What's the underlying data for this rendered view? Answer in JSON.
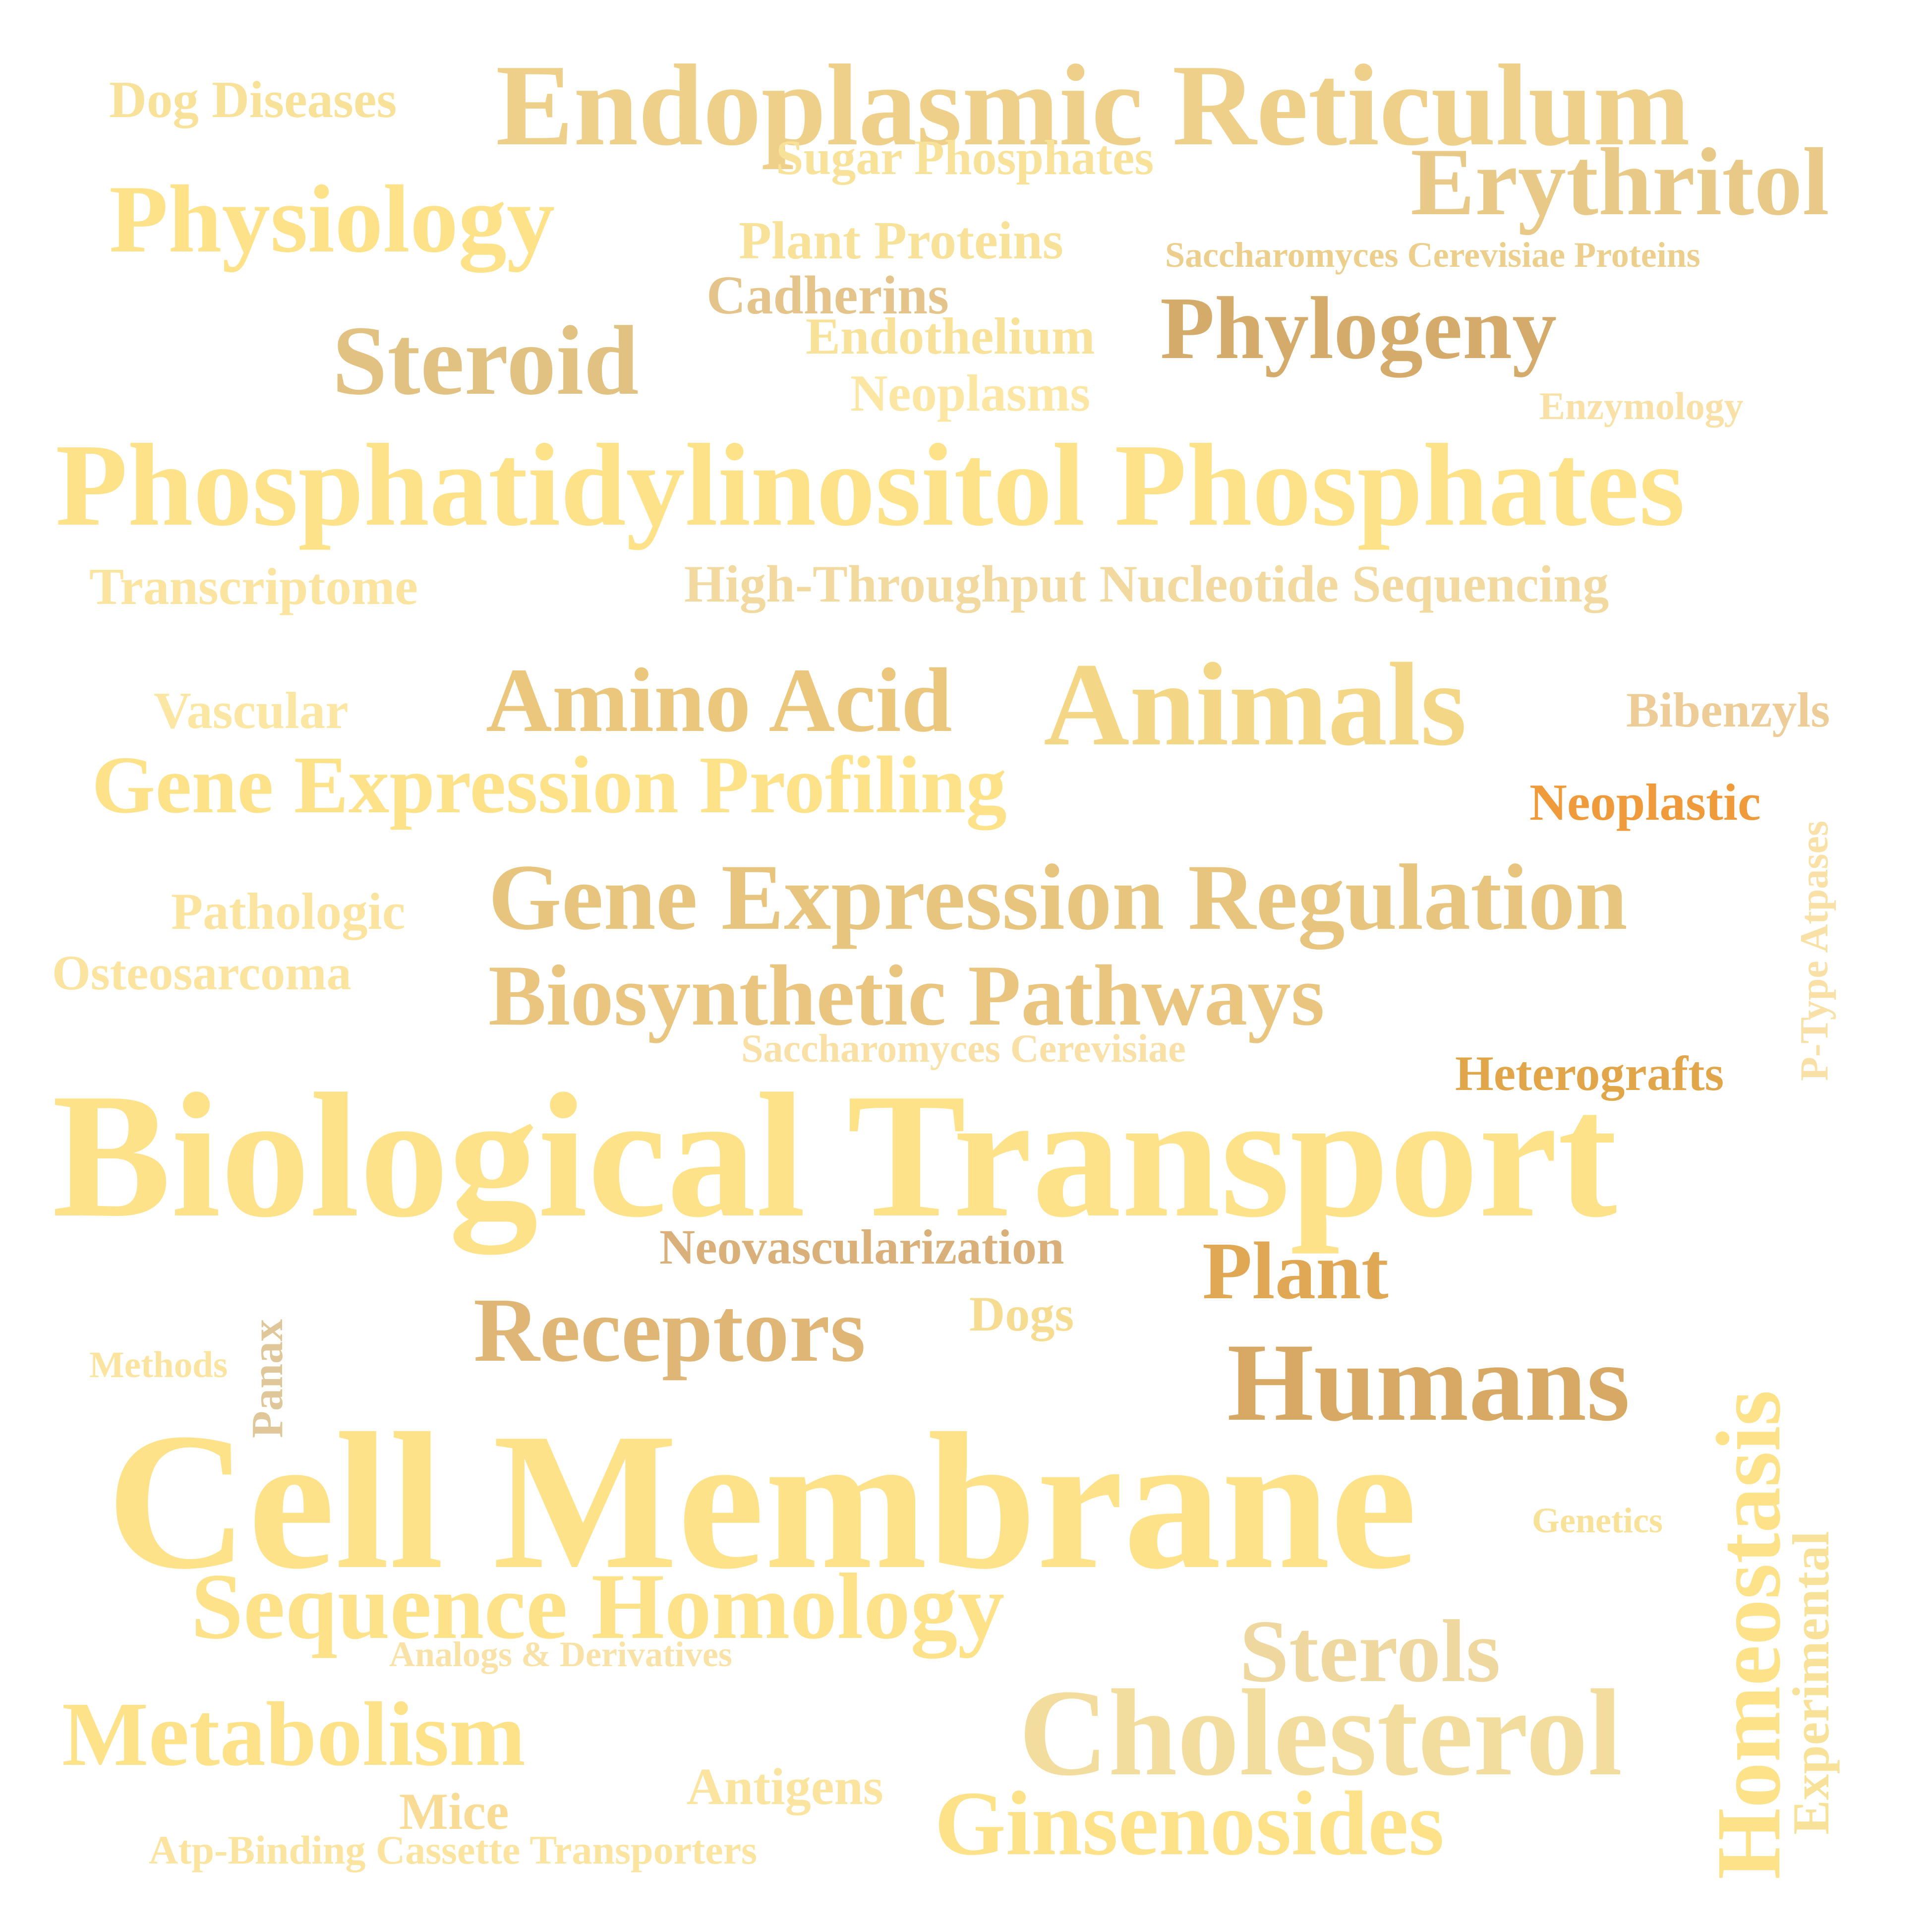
{
  "palette": {
    "light": "#fde28a",
    "pale": "#f8e29a",
    "mid": "#efd08a",
    "tan": "#e6c27e",
    "dark_tan": "#d6a95f",
    "amber": "#e2a64a",
    "orange": "#ef9b3c",
    "deep_tan": "#caa060"
  },
  "words": [
    {
      "id": "dog-diseases",
      "text": "Dog Diseases",
      "color": "#f8e29a"
    },
    {
      "id": "endoplasmic-reticulum",
      "text": "Endoplasmic Reticulum",
      "color": "#efd08a"
    },
    {
      "id": "sugar-phosphates",
      "text": "Sugar Phosphates",
      "color": "#f8e29a"
    },
    {
      "id": "erythritol",
      "text": "Erythritol",
      "color": "#e9c987"
    },
    {
      "id": "physiology",
      "text": "Physiology",
      "color": "#fde28a"
    },
    {
      "id": "plant-proteins",
      "text": "Plant Proteins",
      "color": "#f8e29a"
    },
    {
      "id": "saccharomyces-cerevisiae-proteins",
      "text": "Saccharomyces Cerevisiae Proteins",
      "color": "#edcf8d"
    },
    {
      "id": "cadherins",
      "text": "Cadherins",
      "color": "#e4c48a"
    },
    {
      "id": "steroid",
      "text": "Steroid",
      "color": "#e2c283"
    },
    {
      "id": "endothelium",
      "text": "Endothelium",
      "color": "#f8e29a"
    },
    {
      "id": "phylogeny",
      "text": "Phylogeny",
      "color": "#d4ab6a"
    },
    {
      "id": "neoplasms",
      "text": "Neoplasms",
      "color": "#fbe6a4"
    },
    {
      "id": "enzymology",
      "text": "Enzymology",
      "color": "#f8e0a6"
    },
    {
      "id": "phosphatidylinositol-phosphates",
      "text": "Phosphatidylinositol Phosphates",
      "color": "#fde28a"
    },
    {
      "id": "transcriptome",
      "text": "Transcriptome",
      "color": "#fbe3a0"
    },
    {
      "id": "high-throughput-nucleotide-sequencing",
      "text": "High-Throughput Nucleotide Sequencing",
      "color": "#f2d9a0"
    },
    {
      "id": "vascular",
      "text": "Vascular",
      "color": "#fbe6a4"
    },
    {
      "id": "amino-acid",
      "text": "Amino Acid",
      "color": "#ebc77e"
    },
    {
      "id": "animals",
      "text": "Animals",
      "color": "#f4d786"
    },
    {
      "id": "bibenzyls",
      "text": "Bibenzyls",
      "color": "#edcc98"
    },
    {
      "id": "gene-expression-profiling",
      "text": "Gene Expression Profiling",
      "color": "#fde28a"
    },
    {
      "id": "neoplastic",
      "text": "Neoplastic",
      "color": "#ef9b3c"
    },
    {
      "id": "p-type-atpases",
      "text": "P-Type Atpases",
      "color": "#f8e0a6"
    },
    {
      "id": "pathologic",
      "text": "Pathologic",
      "color": "#fbe3a0"
    },
    {
      "id": "gene-expression-regulation",
      "text": "Gene Expression Regulation",
      "color": "#e8c57f"
    },
    {
      "id": "osteosarcoma",
      "text": "Osteosarcoma",
      "color": "#fbe3a0"
    },
    {
      "id": "biosynthetic-pathways",
      "text": "Biosynthetic Pathways",
      "color": "#e9c57f"
    },
    {
      "id": "saccharomyces-cerevisiae",
      "text": "Saccharomyces Cerevisiae",
      "color": "#f8e0a6"
    },
    {
      "id": "heterografts",
      "text": "Heterografts",
      "color": "#e2a64a"
    },
    {
      "id": "biological-transport",
      "text": "Biological Transport",
      "color": "#fde28a"
    },
    {
      "id": "neovascularization",
      "text": "Neovascularization",
      "color": "#d9b07a"
    },
    {
      "id": "plant",
      "text": "Plant",
      "color": "#e0a855"
    },
    {
      "id": "panax",
      "text": "Panax",
      "color": "#e0c79a"
    },
    {
      "id": "receptors",
      "text": "Receptors",
      "color": "#e0b676"
    },
    {
      "id": "dogs",
      "text": "Dogs",
      "color": "#f6dc90"
    },
    {
      "id": "methods",
      "text": "Methods",
      "color": "#fbe3a0"
    },
    {
      "id": "humans",
      "text": "Humans",
      "color": "#d8a964"
    },
    {
      "id": "homeostasis",
      "text": "Homeostasis",
      "color": "#fde28a"
    },
    {
      "id": "cell-membrane",
      "text": "Cell Membrane",
      "color": "#fde28a"
    },
    {
      "id": "genetics",
      "text": "Genetics",
      "color": "#f8e29a"
    },
    {
      "id": "experimental",
      "text": "Experimental",
      "color": "#f8e29a"
    },
    {
      "id": "sequence-homology",
      "text": "Sequence Homology",
      "color": "#fde28a"
    },
    {
      "id": "sterols",
      "text": "Sterols",
      "color": "#efd7a0"
    },
    {
      "id": "analogs-derivatives",
      "text": "Analogs & Derivatives",
      "color": "#f8e2a8"
    },
    {
      "id": "metabolism",
      "text": "Metabolism",
      "color": "#fde28a"
    },
    {
      "id": "cholesterol",
      "text": "Cholesterol",
      "color": "#f2dc9e"
    },
    {
      "id": "antigens",
      "text": "Antigens",
      "color": "#fbe3a0"
    },
    {
      "id": "mice",
      "text": "Mice",
      "color": "#f8dc95"
    },
    {
      "id": "ginsenosides",
      "text": "Ginsenosides",
      "color": "#fde28a"
    },
    {
      "id": "atp-binding-cassette-transporters",
      "text": "Atp-Binding Cassette Transporters",
      "color": "#fbe3a0"
    }
  ]
}
